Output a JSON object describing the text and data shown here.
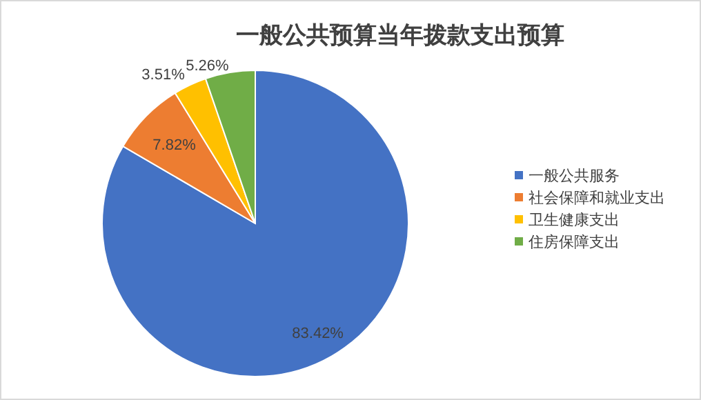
{
  "chart_data": {
    "type": "pie",
    "title": "一般公共预算当年拨款支出预算",
    "categories": [
      "一般公共服务",
      "社会保障和就业支出",
      "卫生健康支出",
      "住房保障支出"
    ],
    "values": [
      83.42,
      7.82,
      3.51,
      5.26
    ],
    "colors": [
      "#4472c4",
      "#ed7d31",
      "#ffc000",
      "#70ad47"
    ],
    "value_labels": [
      "83.42%",
      "7.82%",
      "3.51%",
      "5.26%"
    ],
    "legend": "right"
  }
}
